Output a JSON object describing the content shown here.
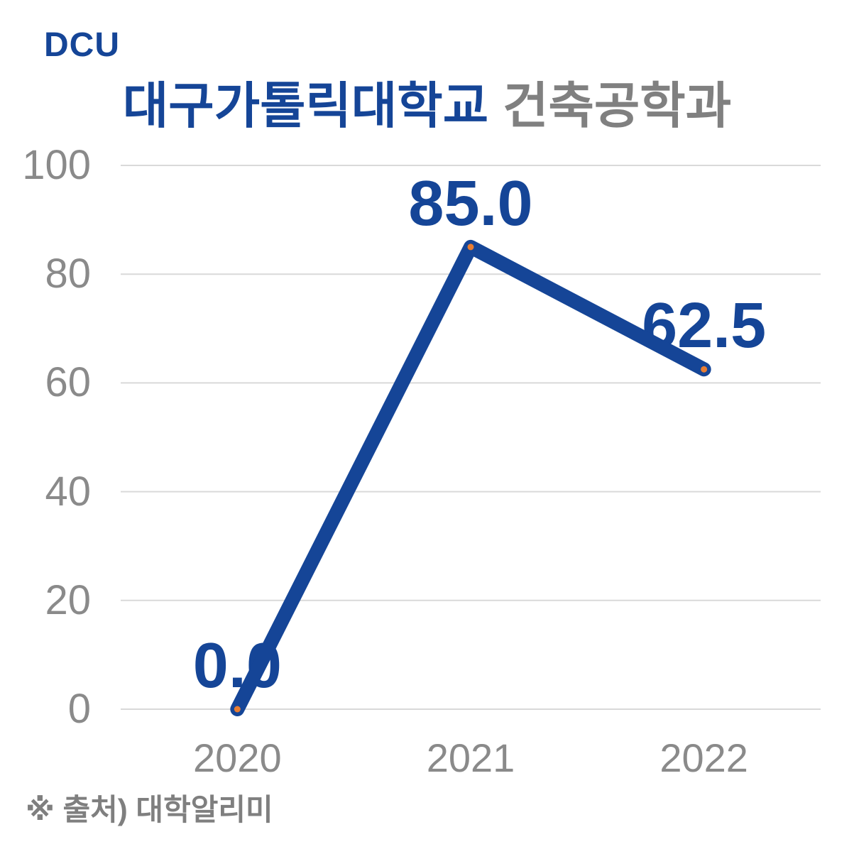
{
  "logo": "DCU",
  "title": {
    "primary": "대구가톨릭대학교",
    "secondary": "건축공학과"
  },
  "footer": "※ 출처) 대학알리미",
  "colors": {
    "brand_blue": "#154597",
    "marker_orange": "#E87D33",
    "gridline": "#D9D9D9",
    "tick_gray": "#8A8A8A",
    "title_gray": "#808080",
    "footer_gray": "#7F7F7F",
    "background": "#FFFFFF"
  },
  "chart_data": {
    "type": "line",
    "title": "대구가톨릭대학교 건축공학과",
    "categories": [
      "2020",
      "2021",
      "2022"
    ],
    "series": [
      {
        "name": "대구가톨릭대학교 건축공학과",
        "values": [
          0.0,
          85.0,
          62.5
        ]
      }
    ],
    "data_labels": [
      "0.0",
      "85.0",
      "62.5"
    ],
    "xlabel": "",
    "ylabel": "",
    "ylim": [
      0,
      100
    ],
    "yticks": [
      0,
      20,
      40,
      60,
      80,
      100
    ],
    "grid": true,
    "legend": false,
    "source_note": "※ 출처) 대학알리미"
  }
}
